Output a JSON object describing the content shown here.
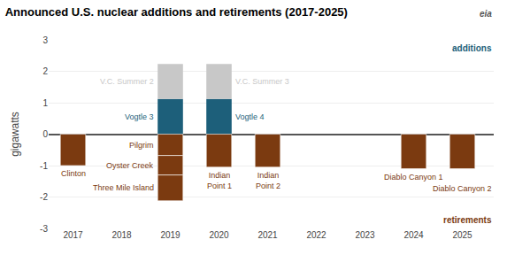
{
  "chart_data": {
    "type": "bar",
    "title": "Announced U.S. nuclear additions and retirements (2017-2025)",
    "ylabel": "gigawatts",
    "categories": [
      "2017",
      "2018",
      "2019",
      "2020",
      "2021",
      "2022",
      "2023",
      "2024",
      "2025"
    ],
    "stacked": true,
    "grid": true,
    "ylim": [
      -3,
      3
    ],
    "yticks": [
      -3,
      -2,
      -1,
      0,
      1,
      2,
      3
    ],
    "series": [
      {
        "name": "Vogtle 3",
        "color": "#1d5f7a",
        "values": [
          null,
          null,
          1.117,
          null,
          null,
          null,
          null,
          null,
          null
        ]
      },
      {
        "name": "V.C. Summer 2",
        "color": "#c8c8c8",
        "values": [
          null,
          null,
          1.117,
          null,
          null,
          null,
          null,
          null,
          null
        ]
      },
      {
        "name": "Vogtle 4",
        "color": "#1d5f7a",
        "values": [
          null,
          null,
          null,
          1.117,
          null,
          null,
          null,
          null,
          null
        ]
      },
      {
        "name": "V.C. Summer 3",
        "color": "#c8c8c8",
        "values": [
          null,
          null,
          null,
          1.117,
          null,
          null,
          null,
          null,
          null
        ]
      },
      {
        "name": "Clinton",
        "color": "#7b3a10",
        "values": [
          -1.0,
          null,
          null,
          null,
          null,
          null,
          null,
          null,
          null
        ]
      },
      {
        "name": "Pilgrim",
        "color": "#7b3a10",
        "values": [
          null,
          null,
          -0.68,
          null,
          null,
          null,
          null,
          null,
          null
        ]
      },
      {
        "name": "Oyster Creek",
        "color": "#7b3a10",
        "values": [
          null,
          null,
          -0.62,
          null,
          null,
          null,
          null,
          null,
          null
        ]
      },
      {
        "name": "Three Mile Island",
        "color": "#7b3a10",
        "values": [
          null,
          null,
          -0.82,
          null,
          null,
          null,
          null,
          null,
          null
        ]
      },
      {
        "name": "Indian\nPoint 1",
        "color": "#7b3a10",
        "values": [
          null,
          null,
          null,
          -1.05,
          null,
          null,
          null,
          null,
          null
        ]
      },
      {
        "name": "Indian\nPoint 2",
        "color": "#7b3a10",
        "values": [
          null,
          null,
          null,
          null,
          -1.05,
          null,
          null,
          null,
          null
        ]
      },
      {
        "name": "Diablo Canyon 1",
        "color": "#7b3a10",
        "values": [
          null,
          null,
          null,
          null,
          null,
          null,
          null,
          -1.1,
          null
        ]
      },
      {
        "name": "Diablo Canyon 2",
        "color": "#7b3a10",
        "values": [
          null,
          null,
          null,
          null,
          null,
          null,
          null,
          null,
          -1.1
        ]
      }
    ],
    "annotations": [
      {
        "text": "additions",
        "color": "#1d5f7a"
      },
      {
        "text": "retirements",
        "color": "#7b3a10"
      },
      {
        "text": "eia",
        "color": "#555555"
      }
    ]
  }
}
